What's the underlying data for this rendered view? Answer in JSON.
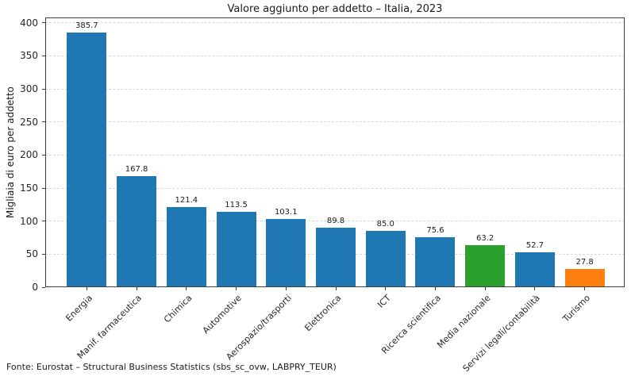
{
  "source_note": "Fonte: Eurostat – Structural Business Statistics (sbs_sc_ovw, LABPRY_TEUR)",
  "colors": {
    "bar_default": "#1f77b4",
    "bar_media_nazionale": "#2ca02c",
    "bar_turismo": "#ff7f0e",
    "gridline": "#d7d7d7",
    "spine": "#3f3f3f",
    "text": "#1a1a1a",
    "background": "#ffffff"
  },
  "chart_data": {
    "type": "bar",
    "title": "Valore aggiunto per addetto – Italia, 2023",
    "xlabel": "",
    "ylabel": "Migliaia di euro per addetto",
    "categories": [
      "Energia",
      "Manif. farmaceutica",
      "Chimica",
      "Automotive",
      "Aerospazio/trasporti",
      "Elettronica",
      "ICT",
      "Ricerca scientifica",
      "Media nazionale",
      "Servizi legali/contabilità",
      "Turismo"
    ],
    "values": [
      385.7,
      167.8,
      121.4,
      113.5,
      103.1,
      89.8,
      85.0,
      75.6,
      63.2,
      52.7,
      27.8
    ],
    "value_labels": [
      "385.7",
      "167.8",
      "121.4",
      "113.5",
      "103.1",
      "89.8",
      "85.0",
      "75.6",
      "63.2",
      "52.7",
      "27.8"
    ],
    "bar_colors": [
      "#1f77b4",
      "#1f77b4",
      "#1f77b4",
      "#1f77b4",
      "#1f77b4",
      "#1f77b4",
      "#1f77b4",
      "#1f77b4",
      "#2ca02c",
      "#1f77b4",
      "#ff7f0e"
    ],
    "ylim": [
      0,
      408
    ],
    "yticks": [
      0,
      50,
      100,
      150,
      200,
      250,
      300,
      350,
      400
    ],
    "grid": "horizontal-dashed",
    "legend": "none",
    "x_tick_rotation": 45
  }
}
